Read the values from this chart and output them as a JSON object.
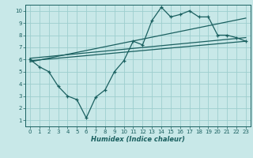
{
  "xlabel": "Humidex (Indice chaleur)",
  "bg_color": "#c8e8e8",
  "grid_color": "#9ecece",
  "line_color": "#1a6060",
  "xlim": [
    -0.5,
    23.5
  ],
  "ylim": [
    0.5,
    10.5
  ],
  "xticks": [
    0,
    1,
    2,
    3,
    4,
    5,
    6,
    7,
    8,
    9,
    10,
    11,
    12,
    13,
    14,
    15,
    16,
    17,
    18,
    19,
    20,
    21,
    22,
    23
  ],
  "yticks": [
    1,
    2,
    3,
    4,
    5,
    6,
    7,
    8,
    9,
    10
  ],
  "series1_x": [
    0,
    1,
    2,
    3,
    4,
    5,
    6,
    7,
    8,
    9,
    10,
    11,
    12,
    13,
    14,
    15,
    16,
    17,
    18,
    19,
    20,
    21,
    22,
    23
  ],
  "series1_y": [
    6.0,
    5.4,
    5.0,
    3.8,
    3.0,
    2.7,
    1.2,
    2.9,
    3.5,
    5.0,
    5.9,
    7.5,
    7.2,
    9.2,
    10.3,
    9.5,
    9.7,
    10.0,
    9.5,
    9.5,
    8.0,
    8.0,
    7.8,
    7.5
  ],
  "series2_x": [
    0,
    23
  ],
  "series2_y": [
    5.9,
    7.5
  ],
  "series3_x": [
    0,
    23
  ],
  "series3_y": [
    6.1,
    7.8
  ],
  "series4_x": [
    0,
    23
  ],
  "series4_y": [
    5.8,
    9.4
  ]
}
